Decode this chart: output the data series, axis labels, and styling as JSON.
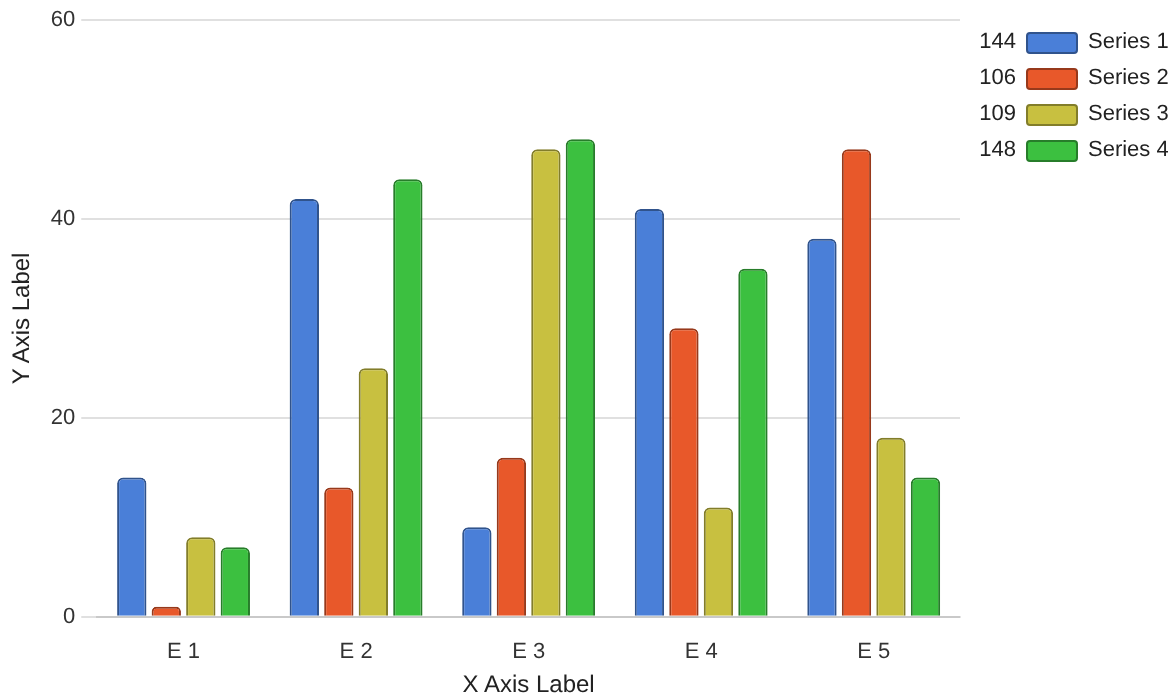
{
  "chart_data": {
    "type": "bar",
    "xlabel": "X Axis Label",
    "ylabel": "Y Axis Label",
    "categories": [
      "E 1",
      "E 2",
      "E 3",
      "E 4",
      "E 5"
    ],
    "series": [
      {
        "name": "Series 1",
        "color": "#4a7fd8",
        "values": [
          14,
          42,
          9,
          41,
          38
        ]
      },
      {
        "name": "Series 2",
        "color": "#e8582a",
        "values": [
          1,
          13,
          16,
          29,
          47
        ]
      },
      {
        "name": "Series 3",
        "color": "#c8c040",
        "values": [
          8,
          25,
          47,
          11,
          18
        ]
      },
      {
        "name": "Series 4",
        "color": "#3cc040",
        "values": [
          7,
          44,
          48,
          35,
          14
        ]
      }
    ],
    "annotations": [
      "144",
      "106",
      "109",
      "148"
    ],
    "ylim": [
      0,
      60
    ],
    "yticks": [
      0,
      20,
      40,
      60
    ],
    "grid": "y",
    "legend": "top right"
  }
}
